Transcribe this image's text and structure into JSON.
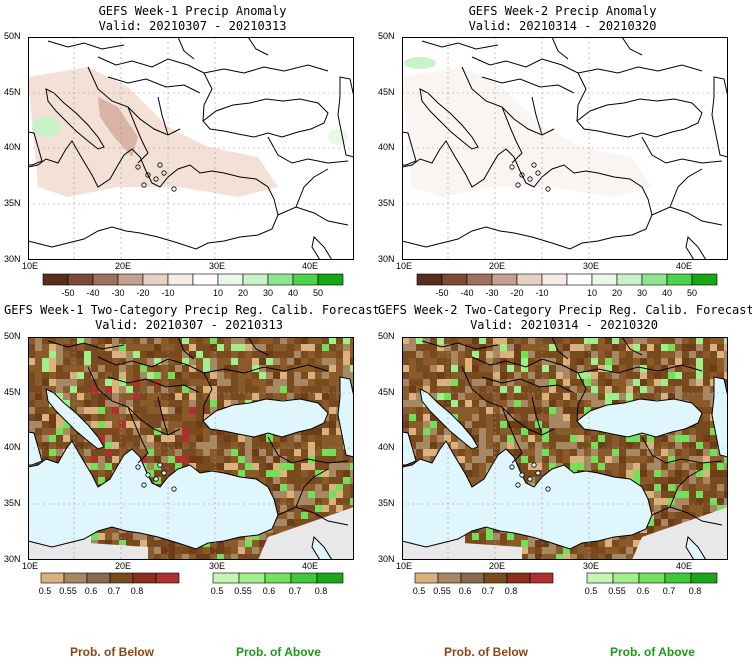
{
  "panels": [
    {
      "id": "p1",
      "title": "GEFS Week-1 Precip Anomaly",
      "valid": "Valid: 20210307 - 20210313",
      "kind": "anomaly"
    },
    {
      "id": "p2",
      "title": "GEFS Week-2 Precip Anomaly",
      "valid": "Valid: 20210314 - 20210320",
      "kind": "anomaly"
    },
    {
      "id": "p3",
      "title": "GEFS Week-1 Two-Category Precip Reg. Calib. Forecast",
      "valid": "Valid: 20210307 - 20210313",
      "kind": "prob"
    },
    {
      "id": "p4",
      "title": "GEFS Week-2 Two-Category Precip Reg. Calib. Forecast",
      "valid": "Valid: 20210314 - 20210320",
      "kind": "prob"
    }
  ],
  "lat_labels": [
    "50N",
    "45N",
    "40N",
    "35N",
    "30N"
  ],
  "lon_labels": [
    "10E",
    "20E",
    "30E",
    "40E"
  ],
  "anomaly_colorbar": {
    "ticks": [
      "-50",
      "-40",
      "-30",
      "-20",
      "-10",
      "10",
      "20",
      "30",
      "40",
      "50"
    ],
    "colors": [
      "#5a2e1e",
      "#7c4a35",
      "#9e7060",
      "#c3a090",
      "#e8d0c4",
      "#f6ece6",
      "#ffffff",
      "#e9f9e9",
      "#c8f2c8",
      "#8fe48f",
      "#4cd24c",
      "#14a814"
    ]
  },
  "below_colorbar": {
    "ticks": [
      "0.5",
      "0.55",
      "0.6",
      "0.7",
      "0.8"
    ],
    "colors": [
      "#d9b27e",
      "#a88863",
      "#8a6a4a",
      "#7a4a1f",
      "#8b2e1e",
      "#b03030"
    ]
  },
  "above_colorbar": {
    "ticks": [
      "0.5",
      "0.55",
      "0.6",
      "0.7",
      "0.8"
    ],
    "colors": [
      "#c8f5b4",
      "#9ff08a",
      "#73e05a",
      "#3ec83a",
      "#1aa81a"
    ]
  },
  "legend": {
    "below": "Prob. of Below",
    "above": "Prob. of Above",
    "below_color": "#8b4513",
    "above_color": "#1a9a1a"
  }
}
